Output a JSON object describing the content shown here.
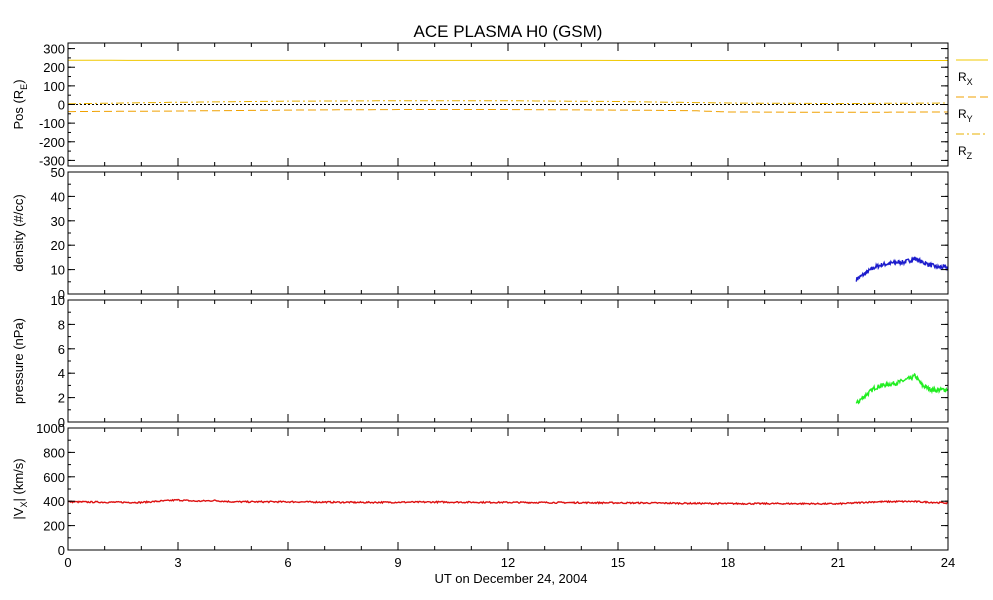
{
  "title": "ACE PLASMA H0 (GSM)",
  "xlabel": "UT on December 24, 2004",
  "x_ticks": [
    "0",
    "3",
    "6",
    "9",
    "12",
    "15",
    "18",
    "21",
    "24"
  ],
  "chart_data": [
    {
      "type": "line",
      "ylabel": "Pos (R_E)",
      "ylim": [
        -330,
        330
      ],
      "y_ticks": [
        "300",
        "200",
        "100",
        "0",
        "-100",
        "-200",
        "-300"
      ],
      "y_tick_values": [
        300,
        200,
        100,
        0,
        -100,
        -200,
        -300
      ],
      "xlim": [
        0,
        24
      ],
      "zero_line": true,
      "series": [
        {
          "name": "R_X",
          "color": "#f0c800",
          "dash": "solid",
          "x": [
            0,
            24
          ],
          "y": [
            237,
            236
          ]
        },
        {
          "name": "R_Y",
          "color": "#f0a000",
          "dash": "dashed",
          "x": [
            0,
            3,
            6,
            9,
            12,
            15,
            17,
            18,
            21,
            24
          ],
          "y": [
            -38,
            -35,
            -30,
            -27,
            -27,
            -30,
            -33,
            -40,
            -42,
            -40
          ]
        },
        {
          "name": "R_Z",
          "color": "#e8b000",
          "dash": "dashdot",
          "x": [
            0,
            3,
            6,
            9,
            12,
            15,
            18,
            21,
            24
          ],
          "y": [
            4,
            12,
            18,
            20,
            20,
            16,
            8,
            5,
            8
          ]
        }
      ]
    },
    {
      "type": "line",
      "ylabel": "density (#/cc)",
      "ylim": [
        0,
        50
      ],
      "y_ticks": [
        "50",
        "40",
        "30",
        "20",
        "10",
        "0"
      ],
      "y_tick_values": [
        50,
        40,
        30,
        20,
        10,
        0
      ],
      "xlim": [
        0,
        24
      ],
      "series": [
        {
          "color": "#1c1ccc",
          "x": [
            21.5,
            21.6,
            21.8,
            22.0,
            22.2,
            22.4,
            22.6,
            22.8,
            23.0,
            23.1,
            23.3,
            23.5,
            23.7,
            24.0
          ],
          "y": [
            6,
            7,
            9,
            11,
            12,
            12.5,
            13,
            13,
            14,
            14.5,
            13,
            12,
            11,
            11
          ]
        }
      ]
    },
    {
      "type": "line",
      "ylabel": "pressure (nPa)",
      "ylim": [
        0,
        10
      ],
      "y_ticks": [
        "10",
        "8",
        "6",
        "4",
        "2",
        "0"
      ],
      "y_tick_values": [
        10,
        8,
        6,
        4,
        2,
        0
      ],
      "xlim": [
        0,
        24
      ],
      "series": [
        {
          "color": "#22ee22",
          "x": [
            21.5,
            21.6,
            21.8,
            22.0,
            22.2,
            22.4,
            22.6,
            22.8,
            23.0,
            23.1,
            23.3,
            23.5,
            23.7,
            24.0
          ],
          "y": [
            1.5,
            1.8,
            2.3,
            2.8,
            3.0,
            3.1,
            3.2,
            3.4,
            3.6,
            3.8,
            3.0,
            2.7,
            2.6,
            2.7
          ]
        }
      ]
    },
    {
      "type": "line",
      "ylabel": "|V_X| (km/s)",
      "ylim": [
        0,
        1000
      ],
      "y_ticks": [
        "1000",
        "800",
        "600",
        "400",
        "200",
        "0"
      ],
      "y_tick_values": [
        1000,
        800,
        600,
        400,
        200,
        0
      ],
      "xlim": [
        0,
        24
      ],
      "series": [
        {
          "color": "#dd1111",
          "x": [
            0,
            1,
            2,
            3,
            3.5,
            4,
            4.5,
            6,
            8,
            10,
            12,
            14,
            16,
            18,
            20,
            21,
            22,
            23,
            24
          ],
          "y": [
            395,
            392,
            390,
            410,
            400,
            405,
            395,
            395,
            390,
            393,
            390,
            388,
            385,
            380,
            380,
            378,
            395,
            398,
            385
          ]
        }
      ]
    }
  ]
}
